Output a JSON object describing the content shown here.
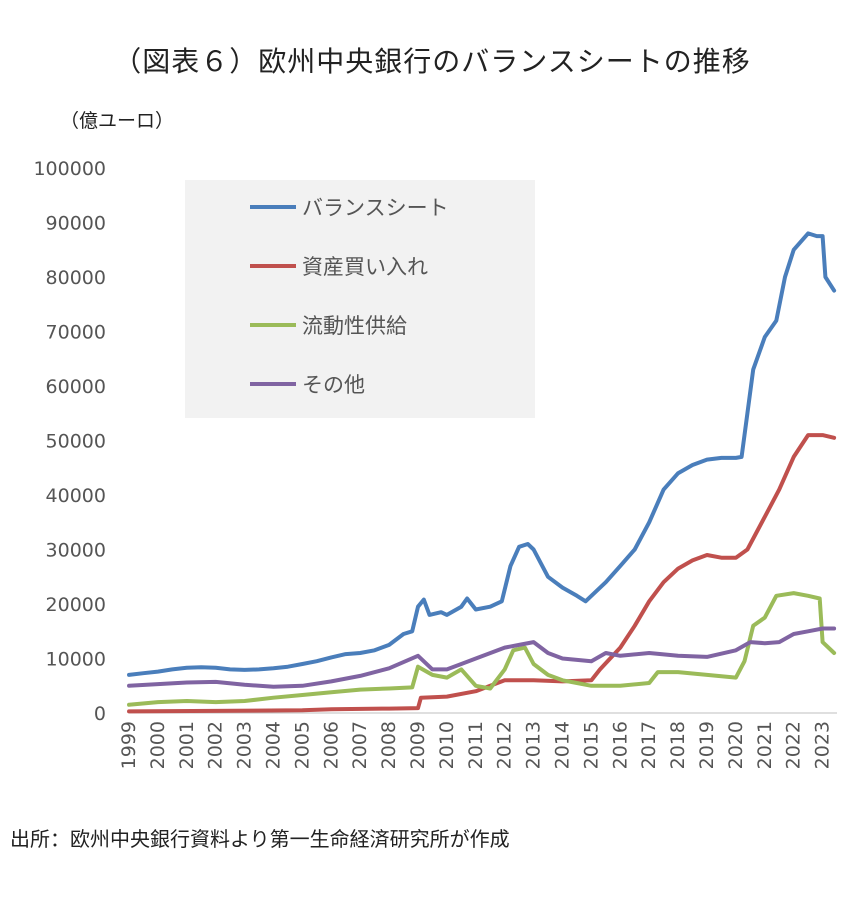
{
  "title": "（図表６）欧州中央銀行のバランスシートの推移",
  "unit_label": "（億ユーロ）",
  "source_note": "出所：欧州中央銀行資料より第一生命経済研究所が作成",
  "chart_data": {
    "type": "line",
    "ylim": [
      0,
      100000
    ],
    "xlim": [
      1999,
      2023.5
    ],
    "yticks": [
      "0",
      "10000",
      "20000",
      "30000",
      "40000",
      "50000",
      "60000",
      "70000",
      "80000",
      "90000",
      "100000"
    ],
    "xticks": [
      "1999",
      "2000",
      "2001",
      "2002",
      "2003",
      "2004",
      "2005",
      "2006",
      "2007",
      "2008",
      "2009",
      "2010",
      "2011",
      "2012",
      "2013",
      "2014",
      "2015",
      "2016",
      "2017",
      "2018",
      "2019",
      "2020",
      "2021",
      "2022",
      "2023"
    ],
    "grid": false,
    "legend_position": "top-left",
    "series": [
      {
        "name": "バランスシート",
        "color": "#4a7ebb",
        "points": [
          [
            1999.0,
            7000
          ],
          [
            1999.5,
            7300
          ],
          [
            2000.0,
            7600
          ],
          [
            2000.5,
            8000
          ],
          [
            2001.0,
            8300
          ],
          [
            2001.5,
            8400
          ],
          [
            2002.0,
            8300
          ],
          [
            2002.5,
            8000
          ],
          [
            2003.0,
            7900
          ],
          [
            2003.5,
            8000
          ],
          [
            2004.0,
            8200
          ],
          [
            2004.5,
            8500
          ],
          [
            2005.0,
            9000
          ],
          [
            2005.5,
            9500
          ],
          [
            2006.0,
            10200
          ],
          [
            2006.5,
            10800
          ],
          [
            2007.0,
            11000
          ],
          [
            2007.5,
            11500
          ],
          [
            2008.0,
            12500
          ],
          [
            2008.5,
            14500
          ],
          [
            2008.8,
            15000
          ],
          [
            2009.0,
            19500
          ],
          [
            2009.2,
            20800
          ],
          [
            2009.4,
            18000
          ],
          [
            2009.8,
            18500
          ],
          [
            2010.0,
            18000
          ],
          [
            2010.5,
            19500
          ],
          [
            2010.7,
            21000
          ],
          [
            2011.0,
            19000
          ],
          [
            2011.5,
            19500
          ],
          [
            2011.9,
            20500
          ],
          [
            2012.2,
            27000
          ],
          [
            2012.5,
            30500
          ],
          [
            2012.8,
            31000
          ],
          [
            2013.0,
            30000
          ],
          [
            2013.5,
            25000
          ],
          [
            2014.0,
            23000
          ],
          [
            2014.5,
            21500
          ],
          [
            2014.8,
            20500
          ],
          [
            2015.0,
            21500
          ],
          [
            2015.5,
            24000
          ],
          [
            2016.0,
            27000
          ],
          [
            2016.5,
            30000
          ],
          [
            2017.0,
            35000
          ],
          [
            2017.5,
            41000
          ],
          [
            2018.0,
            44000
          ],
          [
            2018.5,
            45500
          ],
          [
            2019.0,
            46500
          ],
          [
            2019.5,
            46800
          ],
          [
            2020.0,
            46800
          ],
          [
            2020.2,
            47000
          ],
          [
            2020.4,
            55000
          ],
          [
            2020.6,
            63000
          ],
          [
            2021.0,
            69000
          ],
          [
            2021.4,
            72000
          ],
          [
            2021.7,
            80000
          ],
          [
            2022.0,
            85000
          ],
          [
            2022.5,
            88000
          ],
          [
            2022.8,
            87500
          ],
          [
            2023.0,
            87500
          ],
          [
            2023.1,
            80000
          ],
          [
            2023.4,
            77500
          ]
        ]
      },
      {
        "name": "資産買い入れ",
        "color": "#c0504d",
        "points": [
          [
            1999.0,
            300
          ],
          [
            2005.0,
            500
          ],
          [
            2006.0,
            700
          ],
          [
            2008.0,
            800
          ],
          [
            2009.0,
            900
          ],
          [
            2009.1,
            2800
          ],
          [
            2010.0,
            3000
          ],
          [
            2011.0,
            4000
          ],
          [
            2012.0,
            6000
          ],
          [
            2013.0,
            6000
          ],
          [
            2014.0,
            5800
          ],
          [
            2015.0,
            6000
          ],
          [
            2015.3,
            8000
          ],
          [
            2016.0,
            12000
          ],
          [
            2016.5,
            16000
          ],
          [
            2017.0,
            20500
          ],
          [
            2017.5,
            24000
          ],
          [
            2018.0,
            26500
          ],
          [
            2018.5,
            28000
          ],
          [
            2019.0,
            29000
          ],
          [
            2019.5,
            28500
          ],
          [
            2020.0,
            28500
          ],
          [
            2020.4,
            30000
          ],
          [
            2021.0,
            36000
          ],
          [
            2021.5,
            41000
          ],
          [
            2022.0,
            47000
          ],
          [
            2022.5,
            51000
          ],
          [
            2023.0,
            51000
          ],
          [
            2023.4,
            50500
          ]
        ]
      },
      {
        "name": "流動性供給",
        "color": "#9bbb59",
        "points": [
          [
            1999.0,
            1500
          ],
          [
            2000.0,
            2000
          ],
          [
            2001.0,
            2200
          ],
          [
            2002.0,
            2000
          ],
          [
            2003.0,
            2200
          ],
          [
            2004.0,
            2800
          ],
          [
            2005.0,
            3300
          ],
          [
            2006.0,
            3800
          ],
          [
            2007.0,
            4300
          ],
          [
            2008.0,
            4500
          ],
          [
            2008.8,
            4700
          ],
          [
            2009.0,
            8500
          ],
          [
            2009.5,
            7000
          ],
          [
            2010.0,
            6500
          ],
          [
            2010.5,
            8000
          ],
          [
            2011.0,
            5000
          ],
          [
            2011.5,
            4500
          ],
          [
            2012.0,
            8000
          ],
          [
            2012.3,
            11500
          ],
          [
            2012.7,
            12000
          ],
          [
            2013.0,
            9000
          ],
          [
            2013.5,
            7000
          ],
          [
            2014.0,
            6000
          ],
          [
            2014.5,
            5500
          ],
          [
            2015.0,
            5000
          ],
          [
            2016.0,
            5000
          ],
          [
            2017.0,
            5500
          ],
          [
            2017.3,
            7500
          ],
          [
            2018.0,
            7500
          ],
          [
            2019.0,
            7000
          ],
          [
            2020.0,
            6500
          ],
          [
            2020.3,
            9500
          ],
          [
            2020.6,
            16000
          ],
          [
            2021.0,
            17500
          ],
          [
            2021.4,
            21500
          ],
          [
            2022.0,
            22000
          ],
          [
            2022.5,
            21500
          ],
          [
            2022.9,
            21000
          ],
          [
            2023.0,
            13000
          ],
          [
            2023.4,
            11000
          ]
        ]
      },
      {
        "name": "その他",
        "color": "#8064a2",
        "points": [
          [
            1999.0,
            5000
          ],
          [
            2000.0,
            5300
          ],
          [
            2001.0,
            5600
          ],
          [
            2002.0,
            5700
          ],
          [
            2003.0,
            5200
          ],
          [
            2004.0,
            4800
          ],
          [
            2005.0,
            5000
          ],
          [
            2006.0,
            5800
          ],
          [
            2007.0,
            6800
          ],
          [
            2008.0,
            8200
          ],
          [
            2009.0,
            10500
          ],
          [
            2009.5,
            8000
          ],
          [
            2010.0,
            8000
          ],
          [
            2010.5,
            9000
          ],
          [
            2011.0,
            10000
          ],
          [
            2012.0,
            12000
          ],
          [
            2012.5,
            12500
          ],
          [
            2013.0,
            13000
          ],
          [
            2013.5,
            11000
          ],
          [
            2014.0,
            10000
          ],
          [
            2015.0,
            9500
          ],
          [
            2015.5,
            11000
          ],
          [
            2016.0,
            10500
          ],
          [
            2017.0,
            11000
          ],
          [
            2018.0,
            10500
          ],
          [
            2019.0,
            10300
          ],
          [
            2020.0,
            11500
          ],
          [
            2020.5,
            13000
          ],
          [
            2021.0,
            12800
          ],
          [
            2021.5,
            13000
          ],
          [
            2022.0,
            14500
          ],
          [
            2022.5,
            15000
          ],
          [
            2023.0,
            15500
          ],
          [
            2023.4,
            15500
          ]
        ]
      }
    ]
  }
}
